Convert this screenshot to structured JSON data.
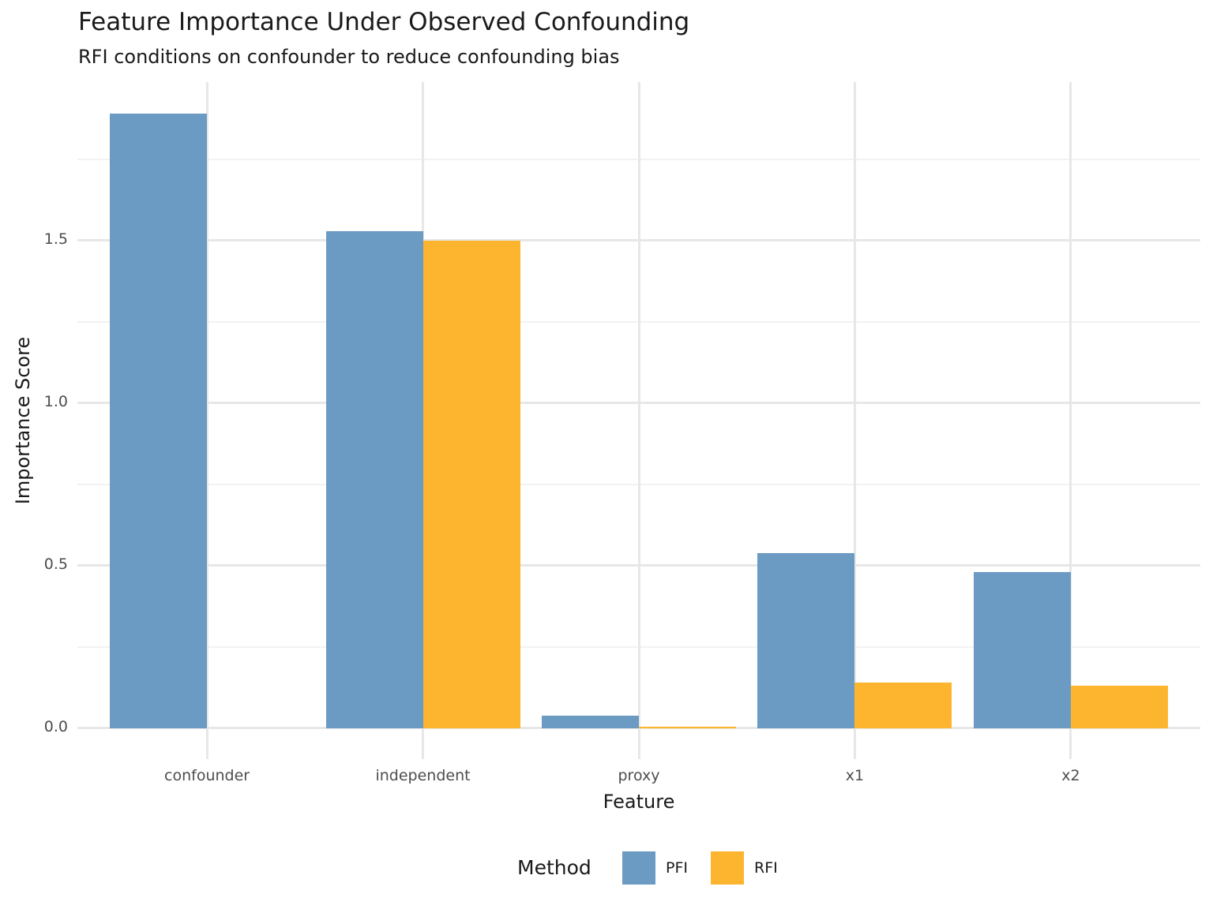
{
  "chart_data": {
    "type": "bar",
    "title": "Feature Importance Under Observed Confounding",
    "subtitle": "RFI conditions on confounder to reduce confounding bias",
    "xlabel": "Feature",
    "ylabel": "Importance Score",
    "categories": [
      "confounder",
      "independent",
      "proxy",
      "x1",
      "x2"
    ],
    "series": [
      {
        "name": "PFI",
        "color": "#6B9AC3",
        "values": [
          1.89,
          1.53,
          0.04,
          0.54,
          0.48
        ]
      },
      {
        "name": "RFI",
        "color": "#FDB42E",
        "values": [
          0.0,
          1.5,
          0.004,
          0.14,
          0.13
        ]
      }
    ],
    "ylim": [
      0,
      1.99
    ],
    "yticks": [
      {
        "label": "0.0",
        "value": 0.0
      },
      {
        "label": "0.5",
        "value": 0.5
      },
      {
        "label": "1.0",
        "value": 1.0
      },
      {
        "label": "1.5",
        "value": 1.5
      }
    ],
    "minor_gridlines": [
      0.25,
      0.75,
      1.25,
      1.75
    ],
    "grid": true,
    "legend_title": "Method",
    "legend_position": "bottom",
    "colors": {
      "background": "#ffffff",
      "major_grid": "#e7e7e7",
      "minor_grid": "#f2f2f2",
      "tick_label": "#4d4d4d",
      "text": "#1a1a1a"
    }
  }
}
